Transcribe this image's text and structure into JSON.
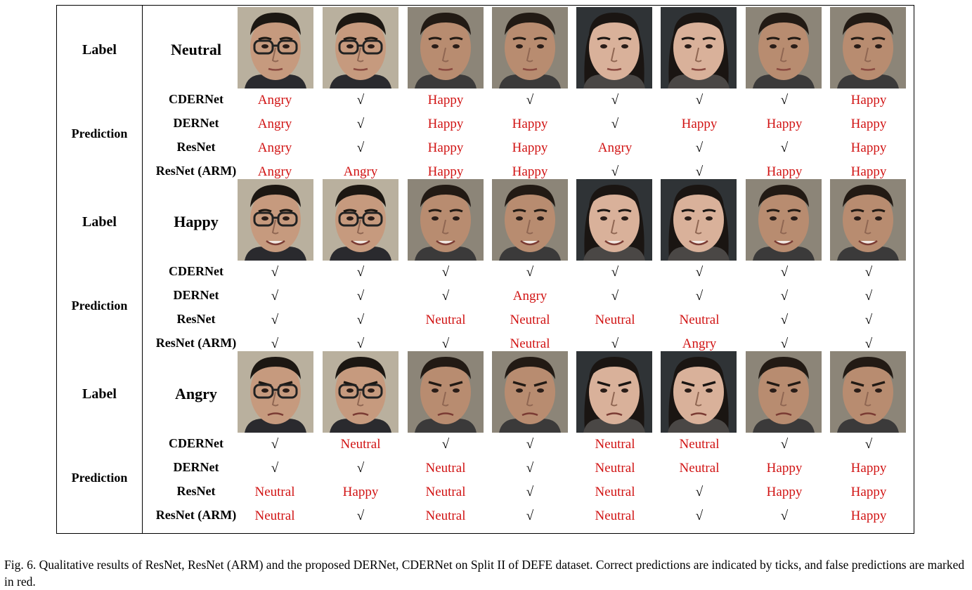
{
  "row_headers": {
    "label": "Label",
    "prediction": "Prediction"
  },
  "models": [
    "CDERNet",
    "DERNet",
    "ResNet",
    "ResNet (ARM)"
  ],
  "tick_symbol": "√",
  "colors": {
    "wrong": "#d11414",
    "correct": "#000000"
  },
  "subjects": [
    "male with glasses",
    "male with glasses",
    "male",
    "male",
    "female",
    "female",
    "male",
    "male"
  ],
  "blocks": [
    {
      "label": "Neutral",
      "predictions": [
        [
          "Angry",
          "√",
          "Happy",
          "√",
          "√",
          "√",
          "√",
          "Happy"
        ],
        [
          "Angry",
          "√",
          "Happy",
          "Happy",
          "√",
          "Happy",
          "Happy",
          "Happy"
        ],
        [
          "Angry",
          "√",
          "Happy",
          "Happy",
          "Angry",
          "√",
          "√",
          "Happy"
        ],
        [
          "Angry",
          "Angry",
          "Happy",
          "Happy",
          "√",
          "√",
          "Happy",
          "Happy"
        ]
      ]
    },
    {
      "label": "Happy",
      "predictions": [
        [
          "√",
          "√",
          "√",
          "√",
          "√",
          "√",
          "√",
          "√"
        ],
        [
          "√",
          "√",
          "√",
          "Angry",
          "√",
          "√",
          "√",
          "√"
        ],
        [
          "√",
          "√",
          "Neutral",
          "Neutral",
          "Neutral",
          "Neutral",
          "√",
          "√"
        ],
        [
          "√",
          "√",
          "√",
          "Neutral",
          "√",
          "Angry",
          "√",
          "√"
        ]
      ]
    },
    {
      "label": "Angry",
      "predictions": [
        [
          "√",
          "Neutral",
          "√",
          "√",
          "Neutral",
          "Neutral",
          "√",
          "√"
        ],
        [
          "√",
          "√",
          "Neutral",
          "√",
          "Neutral",
          "Neutral",
          "Happy",
          "Happy"
        ],
        [
          "Neutral",
          "Happy",
          "Neutral",
          "√",
          "Neutral",
          "√",
          "Happy",
          "Happy"
        ],
        [
          "Neutral",
          "√",
          "Neutral",
          "√",
          "Neutral",
          "√",
          "√",
          "Happy"
        ]
      ]
    }
  ],
  "caption": "Fig. 6.  Qualitative results of ResNet, ResNet (ARM) and the proposed DERNet, CDERNet on Split II of DEFE dataset. Correct predictions are indicated by ticks, and false predictions are marked in red."
}
